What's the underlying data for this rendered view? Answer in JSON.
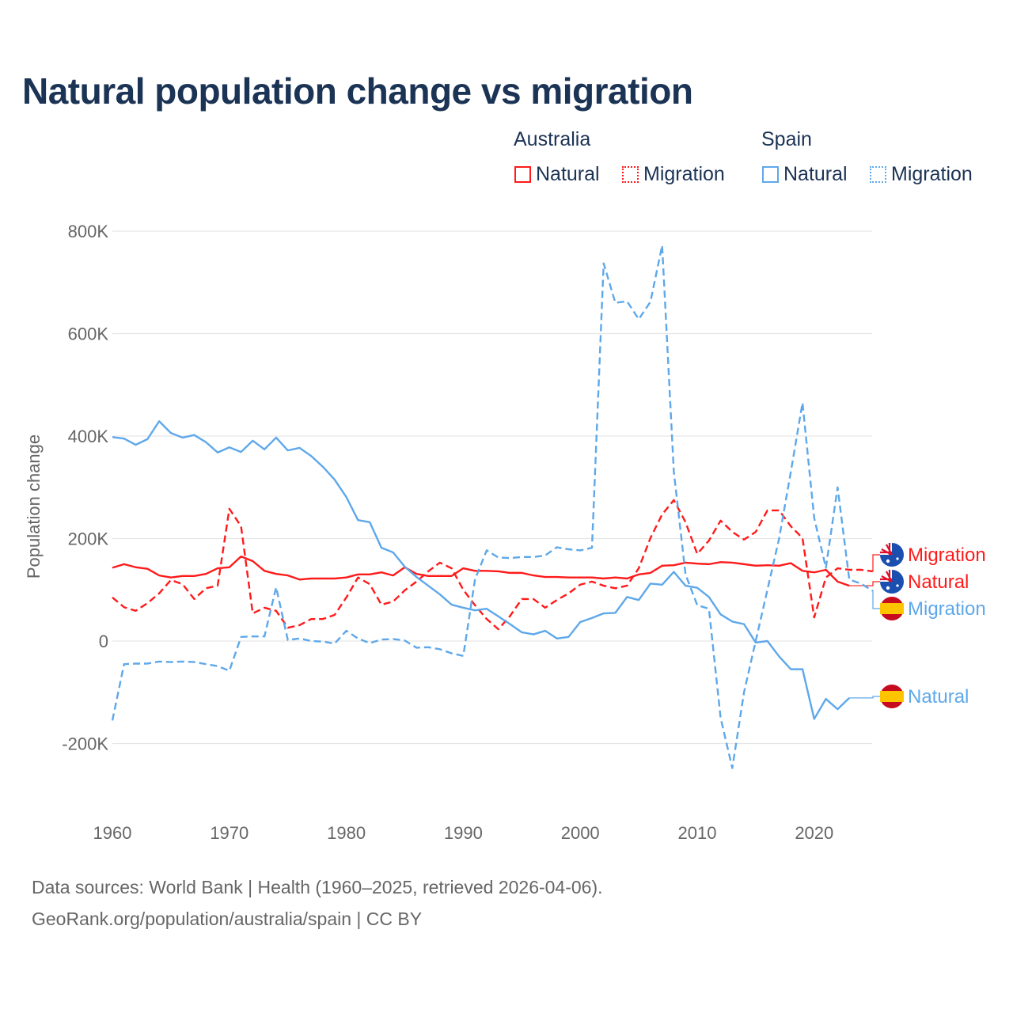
{
  "title": "Natural population change vs migration",
  "legend": {
    "groups": [
      {
        "name": "Australia",
        "items": [
          "Natural",
          "Migration"
        ],
        "color": "#ff1a1a"
      },
      {
        "name": "Spain",
        "items": [
          "Natural",
          "Migration"
        ],
        "color": "#5ea8ea"
      }
    ]
  },
  "footer": {
    "line1": "Data sources: World Bank | Health (1960–2025, retrieved 2026-04-06).",
    "line2": "GeoRank.org/population/australia/spain | CC BY"
  },
  "chart_data": {
    "type": "line",
    "title": "Natural population change vs migration",
    "xlabel": "",
    "ylabel": "Population change",
    "xlim": [
      1960,
      2025
    ],
    "ylim": [
      -300000,
      800000
    ],
    "grid": true,
    "legend_placement": "top-right",
    "x_ticks": [
      1960,
      1970,
      1980,
      1990,
      2000,
      2010,
      2020
    ],
    "y_ticks": [
      {
        "v": 800000,
        "label": "800K"
      },
      {
        "v": 600000,
        "label": "600K"
      },
      {
        "v": 400000,
        "label": "400K"
      },
      {
        "v": 200000,
        "label": "200K"
      },
      {
        "v": 0,
        "label": "0"
      },
      {
        "v": -200000,
        "label": "-200K"
      }
    ],
    "start_year": 1960,
    "series": [
      {
        "name": "Australia Natural",
        "country": "Australia",
        "kind": "Natural",
        "label": "Natural",
        "color": "#ff1a1a",
        "dashed": false,
        "flag": "australia",
        "values_k": [
          143,
          150,
          144,
          141,
          128,
          124,
          127,
          127,
          131,
          142,
          144,
          165,
          156,
          137,
          131,
          128,
          120,
          122,
          122,
          122,
          124,
          130,
          130,
          134,
          128,
          144,
          131,
          127,
          127,
          127,
          142,
          137,
          137,
          136,
          133,
          133,
          128,
          125,
          125,
          124,
          124,
          124,
          122,
          124,
          122,
          130,
          133,
          147,
          148,
          153,
          151,
          150,
          154,
          153,
          150,
          147,
          148,
          147,
          152,
          137,
          134,
          139,
          116,
          108
        ]
      },
      {
        "name": "Australia Migration",
        "country": "Australia",
        "kind": "Migration",
        "label": "Migration",
        "color": "#ff1a1a",
        "dashed": true,
        "flag": "australia",
        "values_k": [
          85,
          66,
          59,
          74,
          93,
          119,
          111,
          82,
          103,
          108,
          258,
          224,
          54,
          65,
          59,
          26,
          31,
          43,
          43,
          51,
          85,
          124,
          111,
          71,
          77,
          99,
          116,
          136,
          153,
          142,
          100,
          70,
          43,
          23,
          49,
          82,
          82,
          65,
          80,
          93,
          110,
          116,
          108,
          103,
          108,
          142,
          201,
          247,
          275,
          232,
          170,
          196,
          235,
          213,
          198,
          213,
          255,
          255,
          224,
          201,
          46,
          124,
          142,
          139,
          139,
          136
        ]
      },
      {
        "name": "Spain Natural",
        "country": "Spain",
        "kind": "Natural",
        "label": "Natural",
        "color": "#5ea8ea",
        "dashed": false,
        "flag": "spain",
        "values_k": [
          398,
          395,
          383,
          394,
          429,
          406,
          397,
          402,
          388,
          368,
          378,
          369,
          391,
          374,
          397,
          372,
          377,
          361,
          340,
          315,
          281,
          236,
          232,
          182,
          173,
          145,
          125,
          108,
          91,
          71,
          65,
          60,
          63,
          48,
          33,
          17,
          13,
          20,
          5,
          8,
          37,
          45,
          54,
          55,
          86,
          80,
          112,
          110,
          135,
          108,
          104,
          86,
          52,
          38,
          33,
          -3,
          0,
          -30,
          -55,
          -55,
          -152,
          -113,
          -133,
          -111
        ]
      },
      {
        "name": "Spain Migration",
        "country": "Spain",
        "kind": "Migration",
        "label": "Migration",
        "color": "#5ea8ea",
        "dashed": true,
        "flag": "spain",
        "values_k": [
          -155,
          -45,
          -44,
          -44,
          -40,
          -41,
          -40,
          -41,
          -45,
          -49,
          -58,
          8,
          9,
          9,
          105,
          2,
          5,
          0,
          -1,
          -5,
          20,
          5,
          -4,
          3,
          4,
          1,
          -13,
          -12,
          -16,
          -24,
          -29,
          120,
          177,
          163,
          162,
          164,
          164,
          167,
          183,
          179,
          177,
          182,
          737,
          660,
          663,
          628,
          662,
          772,
          330,
          130,
          70,
          63,
          -150,
          -248,
          -100,
          0,
          100,
          200,
          330,
          465,
          240,
          143,
          300,
          120,
          112,
          98
        ]
      }
    ]
  }
}
